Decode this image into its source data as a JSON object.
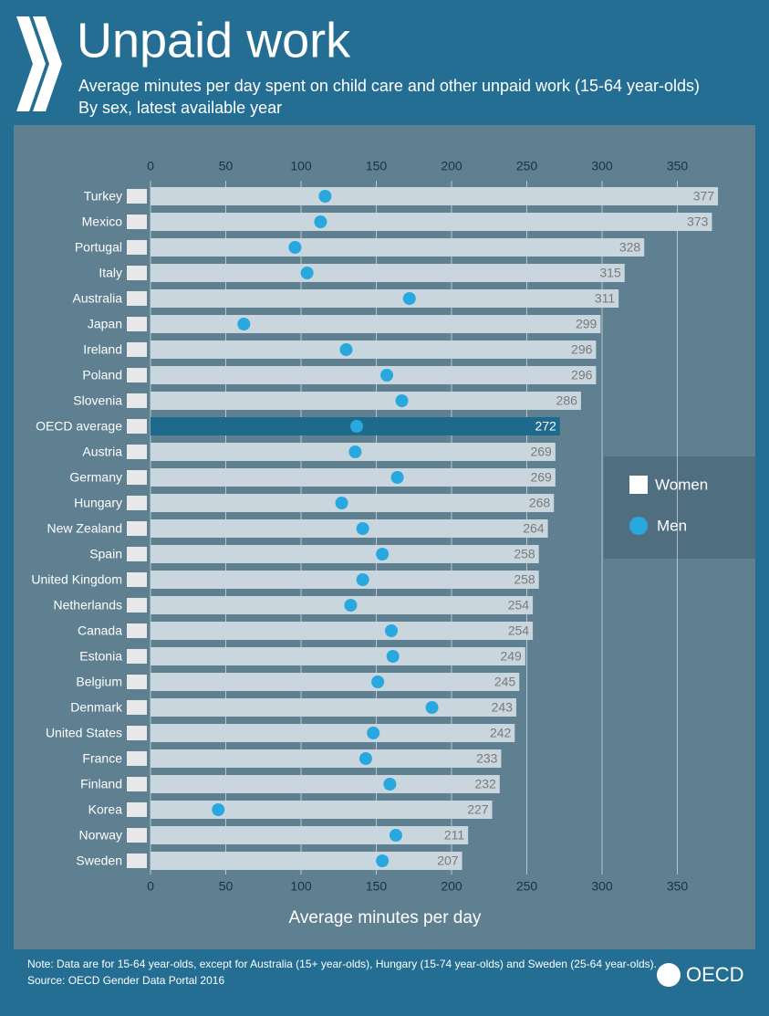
{
  "chart_data": {
    "type": "bar",
    "title": "Unpaid work",
    "subtitle": [
      "Average minutes per day spent on child care and other unpaid work (15-64 year-olds)",
      "By sex, latest available year"
    ],
    "x_label": "Average minutes per day",
    "categories": [
      "Turkey",
      "Mexico",
      "Portugal",
      "Italy",
      "Australia",
      "Japan",
      "Ireland",
      "Poland",
      "Slovenia",
      "OECD average",
      "Austria",
      "Germany",
      "Hungary",
      "New Zealand",
      "Spain",
      "United Kingdom",
      "Netherlands",
      "Canada",
      "Estonia",
      "Belgium",
      "Denmark",
      "United States",
      "France",
      "Finland",
      "Korea",
      "Norway",
      "Sweden"
    ],
    "series": [
      {
        "name": "Women",
        "type": "bar",
        "color": "#c9d6de",
        "colors": [
          "#c9d6de",
          "#c9d6de",
          "#c9d6de",
          "#c9d6de",
          "#c9d6de",
          "#c9d6de",
          "#c9d6de",
          "#c9d6de",
          "#c9d6de",
          "#1d6a8c",
          "#c9d6de",
          "#c9d6de",
          "#c9d6de",
          "#c9d6de",
          "#c9d6de",
          "#c9d6de",
          "#c9d6de",
          "#c9d6de",
          "#c9d6de",
          "#c9d6de",
          "#c9d6de",
          "#c9d6de",
          "#c9d6de",
          "#c9d6de",
          "#c9d6de",
          "#c9d6de",
          "#c9d6de"
        ],
        "values": [
          377,
          373,
          328,
          315,
          311,
          299,
          296,
          296,
          286,
          272,
          269,
          269,
          268,
          264,
          258,
          258,
          254,
          254,
          249,
          245,
          243,
          242,
          233,
          232,
          227,
          211,
          207
        ]
      },
      {
        "name": "Men",
        "type": "scatter",
        "color": "#29a8e0",
        "values": [
          116,
          113,
          96,
          104,
          172,
          62,
          130,
          157,
          167,
          137,
          136,
          164,
          127,
          141,
          154,
          141,
          133,
          160,
          161,
          151,
          187,
          148,
          143,
          159,
          45,
          163,
          154
        ]
      }
    ],
    "xlim": [
      0,
      400
    ],
    "xticks": [
      0,
      50,
      100,
      150,
      200,
      250,
      300,
      350
    ],
    "grid": true,
    "note": "Note: Data are for 15-64 year-olds, except for Australia (15+ year-olds), Hungary (15-74 year-olds) and Sweden (25-64 year-olds).",
    "source": "Source: OECD Gender Data Portal 2016",
    "logo": "OECD"
  }
}
